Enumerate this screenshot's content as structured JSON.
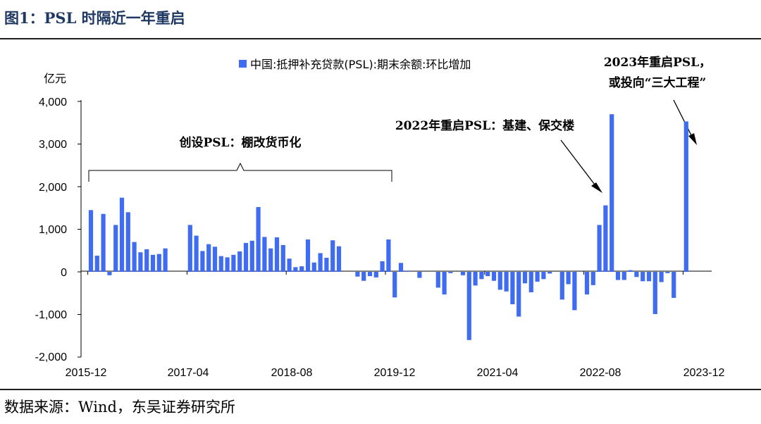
{
  "figure_title": "图1：PSL 时隔近一年重启",
  "source_note": "数据来源：Wind，东吴证券研究所",
  "colors": {
    "bar": "#3f6cf0",
    "title": "#1f3864",
    "axis": "#000000"
  },
  "chart_data": {
    "type": "bar",
    "unit_label": "亿元",
    "legend": "中国:抵押补充贷款(PSL):期末余额:环比增加",
    "legend_position": "top-center",
    "grid": false,
    "ylim": [
      -2000,
      4000
    ],
    "y_ticks": [
      "4,000",
      "3,000",
      "2,000",
      "1,000",
      "0",
      "-1,000",
      "-2,000"
    ],
    "x_tick_labels": [
      "2015-12",
      "2017-04",
      "2018-08",
      "2019-12",
      "2021-04",
      "2022-08",
      "2023-12"
    ],
    "categories": [
      "2015-12",
      "2016-01",
      "2016-02",
      "2016-03",
      "2016-04",
      "2016-05",
      "2016-06",
      "2016-07",
      "2016-08",
      "2016-09",
      "2016-10",
      "2016-11",
      "2016-12",
      "2017-01",
      "2017-02",
      "2017-03",
      "2017-04",
      "2017-05",
      "2017-06",
      "2017-07",
      "2017-08",
      "2017-09",
      "2017-10",
      "2017-11",
      "2017-12",
      "2018-01",
      "2018-02",
      "2018-03",
      "2018-04",
      "2018-05",
      "2018-06",
      "2018-07",
      "2018-08",
      "2018-09",
      "2018-10",
      "2018-11",
      "2018-12",
      "2019-01",
      "2019-02",
      "2019-03",
      "2019-04",
      "2019-05",
      "2019-06",
      "2019-07",
      "2019-08",
      "2019-09",
      "2019-10",
      "2019-11",
      "2019-12",
      "2020-01",
      "2020-02",
      "2020-03",
      "2020-04",
      "2020-05",
      "2020-06",
      "2020-07",
      "2020-08",
      "2020-09",
      "2020-10",
      "2020-11",
      "2020-12",
      "2021-01",
      "2021-02",
      "2021-03",
      "2021-04",
      "2021-05",
      "2021-06",
      "2021-07",
      "2021-08",
      "2021-09",
      "2021-10",
      "2021-11",
      "2021-12",
      "2022-01",
      "2022-02",
      "2022-03",
      "2022-04",
      "2022-05",
      "2022-06",
      "2022-07",
      "2022-08",
      "2022-09",
      "2022-10",
      "2022-11",
      "2022-12",
      "2023-01",
      "2023-02",
      "2023-03",
      "2023-04",
      "2023-05",
      "2023-06",
      "2023-07",
      "2023-08",
      "2023-09",
      "2023-10",
      "2023-11",
      "2023-12"
    ],
    "values": [
      1450,
      380,
      1360,
      -80,
      1100,
      1740,
      1400,
      700,
      460,
      530,
      400,
      420,
      550,
      0,
      0,
      0,
      1100,
      850,
      490,
      650,
      590,
      370,
      340,
      400,
      480,
      680,
      730,
      1520,
      820,
      550,
      810,
      630,
      310,
      110,
      130,
      760,
      220,
      440,
      330,
      740,
      600,
      0,
      0,
      -110,
      -210,
      -100,
      -130,
      250,
      760,
      -600,
      210,
      20,
      0,
      -140,
      0,
      0,
      -370,
      -530,
      -30,
      0,
      -80,
      -1600,
      -320,
      -170,
      -100,
      -210,
      -420,
      -460,
      -760,
      -1050,
      -270,
      -480,
      -230,
      -170,
      -40,
      0,
      -650,
      -290,
      -900,
      0,
      -530,
      -310,
      1100,
      1560,
      3700,
      -190,
      -190,
      40,
      -120,
      -220,
      -220,
      -990,
      -240,
      -30,
      -610,
      0,
      3530
    ],
    "annotations": [
      {
        "text": "创设PSL：棚改货币化"
      },
      {
        "text": "2022年重启PSL：基建、保交楼"
      },
      {
        "lines": [
          "2023年重启PSL，",
          "或投向“三大工程”"
        ]
      }
    ]
  }
}
